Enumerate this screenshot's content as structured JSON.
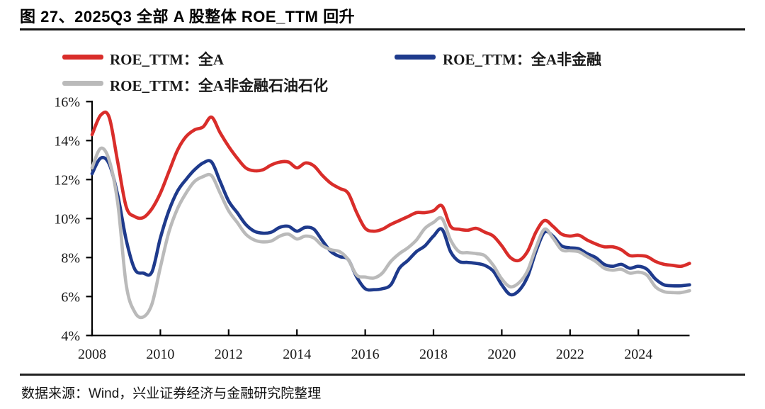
{
  "title": "图 27、2025Q3 全部 A 股整体 ROE_TTM 回升",
  "source": "数据来源：Wind，兴业证券经济与金融研究院整理",
  "colors": {
    "all_a_red": "#d92d2a",
    "non_financial_blue": "#1e3a8c",
    "non_fin_petro_gray": "#bababa",
    "axis_black": "#000000",
    "text_dark": "#1a1a1a"
  },
  "chart_data": {
    "type": "line",
    "title": "",
    "xlabel": "",
    "ylabel": "",
    "grid": false,
    "legend_position": "top",
    "ylim": [
      4,
      16
    ],
    "xlim": [
      2008,
      2025.6
    ],
    "yticks": [
      16,
      14,
      12,
      10,
      8,
      6,
      4
    ],
    "ytick_suffix": "%",
    "xticks": [
      2008,
      2010,
      2012,
      2014,
      2016,
      2018,
      2020,
      2022,
      2024
    ],
    "x_start": 2008.0,
    "x_step": 0.25,
    "x_unit": "quarter",
    "series": [
      {
        "name": "ROE_TTM：全A",
        "color": "#d92d2a",
        "values": [
          14.3,
          15.3,
          15.2,
          12.9,
          10.6,
          10.1,
          10.05,
          10.5,
          11.3,
          12.4,
          13.5,
          14.2,
          14.55,
          14.7,
          15.2,
          14.4,
          13.7,
          13.1,
          12.6,
          12.45,
          12.5,
          12.75,
          12.9,
          12.9,
          12.6,
          12.85,
          12.7,
          12.2,
          11.8,
          11.55,
          11.3,
          10.3,
          9.5,
          9.35,
          9.45,
          9.7,
          9.9,
          10.1,
          10.3,
          10.3,
          10.4,
          10.65,
          9.6,
          9.45,
          9.4,
          9.5,
          9.3,
          9.1,
          8.6,
          8.0,
          7.85,
          8.3,
          9.3,
          9.9,
          9.6,
          9.2,
          9.1,
          9.15,
          8.9,
          8.7,
          8.55,
          8.55,
          8.4,
          8.1,
          8.1,
          8.05,
          7.8,
          7.65,
          7.6,
          7.55,
          7.7
        ]
      },
      {
        "name": "ROE_TTM：全A非金融",
        "color": "#1e3a8c",
        "values": [
          12.3,
          13.1,
          12.8,
          11.2,
          8.9,
          7.4,
          7.2,
          7.25,
          9.0,
          10.4,
          11.4,
          12.0,
          12.5,
          12.85,
          12.9,
          11.9,
          10.9,
          10.3,
          9.7,
          9.35,
          9.25,
          9.3,
          9.55,
          9.6,
          9.35,
          9.55,
          9.45,
          8.85,
          8.3,
          8.05,
          7.9,
          7.0,
          6.4,
          6.35,
          6.4,
          6.6,
          7.45,
          7.85,
          8.3,
          8.6,
          9.1,
          9.45,
          8.3,
          7.8,
          7.75,
          7.7,
          7.6,
          7.3,
          6.6,
          6.1,
          6.3,
          7.0,
          8.3,
          9.3,
          9.1,
          8.6,
          8.5,
          8.45,
          8.2,
          8.0,
          7.65,
          7.55,
          7.65,
          7.45,
          7.55,
          7.4,
          6.9,
          6.6,
          6.55,
          6.55,
          6.6
        ]
      },
      {
        "name": "ROE_TTM：全A非金融石油石化",
        "color": "#bababa",
        "values": [
          12.6,
          13.6,
          13.0,
          10.8,
          6.6,
          5.2,
          4.95,
          5.6,
          7.5,
          9.3,
          10.5,
          11.3,
          11.9,
          12.15,
          12.2,
          11.3,
          10.4,
          9.8,
          9.2,
          8.9,
          8.8,
          8.85,
          9.1,
          9.2,
          8.95,
          9.1,
          9.0,
          8.6,
          8.4,
          8.3,
          7.9,
          7.1,
          7.0,
          6.95,
          7.2,
          7.8,
          8.2,
          8.5,
          8.9,
          9.5,
          9.8,
          10.0,
          8.9,
          8.3,
          8.25,
          8.2,
          8.1,
          7.6,
          6.9,
          6.5,
          6.7,
          7.3,
          8.5,
          9.45,
          9.0,
          8.4,
          8.35,
          8.3,
          8.05,
          7.8,
          7.45,
          7.35,
          7.4,
          7.2,
          7.25,
          7.1,
          6.5,
          6.25,
          6.2,
          6.2,
          6.3
        ]
      }
    ]
  }
}
